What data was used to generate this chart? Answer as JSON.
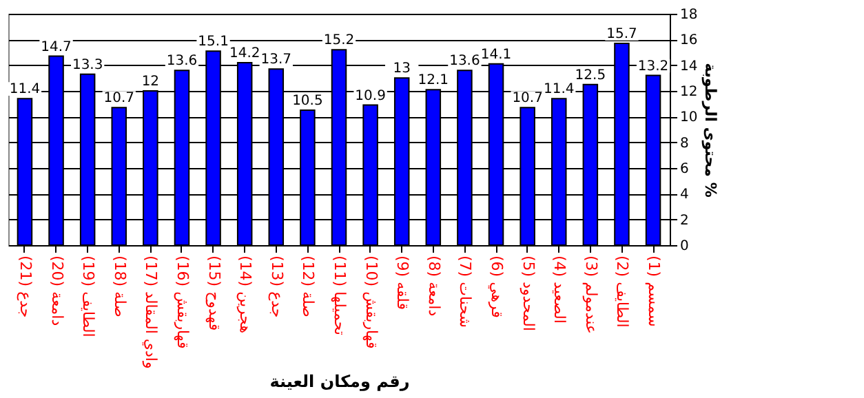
{
  "chart_data": {
    "type": "bar",
    "xlabel": "رقم ومكان العينة",
    "ylabel": "محتوى الرطوبة %",
    "categories": [
      "جدع (21)",
      "دامعة (20)",
      "الطايف (19)",
      "صلة (18)",
      "وادي المقالد (17)",
      "قهاربقش (16)",
      "قهدوح (15)",
      "هجرين (14)",
      "جدع (13)",
      "صلة (12)",
      "تحميلها (11)",
      "قهاربقش (10)",
      "قلقه (9)",
      "دامعة (8)",
      "شحنات (7)",
      "قرهي (6)",
      "المحدود (5)",
      "الصعيد (4)",
      "عندمولم (3)",
      "الطايف (2)",
      "سمسم (1)"
    ],
    "values": [
      11.4,
      14.7,
      13.3,
      10.7,
      12,
      13.6,
      15.1,
      14.2,
      13.7,
      10.5,
      15.2,
      10.9,
      13,
      12.1,
      13.6,
      14.1,
      10.7,
      11.4,
      12.5,
      15.7,
      13.2
    ],
    "color": "#0000ff",
    "ylim": [
      0,
      18
    ],
    "yticks": [
      0,
      2,
      4,
      6,
      8,
      10,
      12,
      14,
      16,
      18
    ],
    "grid": "y",
    "data_labels": true
  }
}
